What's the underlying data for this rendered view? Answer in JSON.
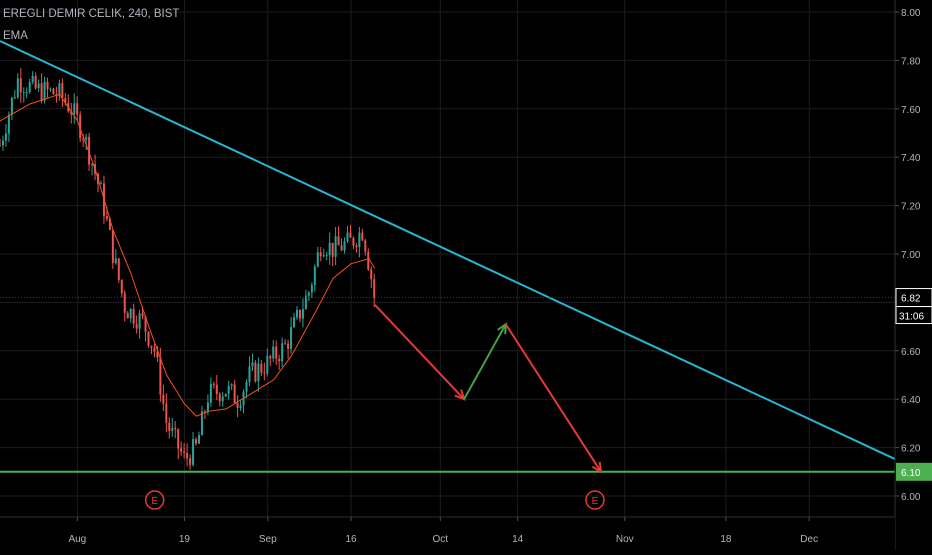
{
  "header": {
    "title": "EREGLI DEMIR CELIK, 240, BIST",
    "indicator": "EMA"
  },
  "price_scale": {
    "ticks": [
      "8.00",
      "7.80",
      "7.60",
      "7.40",
      "7.20",
      "7.00",
      "6.80",
      "6.60",
      "6.40",
      "6.20",
      "6.00"
    ],
    "last_price_label": "6.82",
    "countdown_label": "31:06",
    "support_label": "6.10"
  },
  "time_axis": {
    "labels": [
      "Aug",
      "19",
      "Sep",
      "16",
      "Oct",
      "14",
      "Nov",
      "18",
      "Dec"
    ]
  },
  "markers": [
    {
      "label": "E",
      "date": "Aug 14"
    },
    {
      "label": "E",
      "date": "Oct 27"
    }
  ],
  "colors": {
    "background": "#000000",
    "up_candle": "#26a69a",
    "down_candle": "#ef5350",
    "ema": "#f4511e",
    "trendline": "#29b6d2",
    "support": "#4caf50",
    "projection_down": "#e53935",
    "projection_up": "#43a047",
    "earnings_marker": "#e53935",
    "axis_text": "#b2b5be"
  },
  "chart_data": {
    "type": "candlestick",
    "symbol": "EREGLI DEMIR CELIK",
    "timeframe": "240",
    "exchange": "BIST",
    "ylim": [
      5.94,
      8.02
    ],
    "xlim": [
      "Jul 19",
      "Dec 21"
    ],
    "grid": true,
    "price_close_path": [
      {
        "date": "Jul 19",
        "close": 7.45
      },
      {
        "date": "Jul 22",
        "close": 7.72
      },
      {
        "date": "Jul 25",
        "close": 7.68
      },
      {
        "date": "Jul 29",
        "close": 7.66
      },
      {
        "date": "Jul 31",
        "close": 7.6
      },
      {
        "date": "Aug 2",
        "close": 7.5
      },
      {
        "date": "Aug 5",
        "close": 7.25
      },
      {
        "date": "Aug 7",
        "close": 7.0
      },
      {
        "date": "Aug 9",
        "close": 6.78
      },
      {
        "date": "Aug 12",
        "close": 6.72
      },
      {
        "date": "Aug 14",
        "close": 6.6
      },
      {
        "date": "Aug 16",
        "close": 6.3
      },
      {
        "date": "Aug 19",
        "close": 6.15
      },
      {
        "date": "Aug 21",
        "close": 6.2
      },
      {
        "date": "Aug 23",
        "close": 6.42
      },
      {
        "date": "Aug 26",
        "close": 6.44
      },
      {
        "date": "Aug 28",
        "close": 6.4
      },
      {
        "date": "Aug 30",
        "close": 6.5
      },
      {
        "date": "Sep 2",
        "close": 6.55
      },
      {
        "date": "Sep 5",
        "close": 6.62
      },
      {
        "date": "Sep 9",
        "close": 6.85
      },
      {
        "date": "Sep 11",
        "close": 7.05
      },
      {
        "date": "Sep 13",
        "close": 7.02
      },
      {
        "date": "Sep 16",
        "close": 7.05
      },
      {
        "date": "Sep 18",
        "close": 7.1
      },
      {
        "date": "Sep 19",
        "close": 6.96
      },
      {
        "date": "Sep 20",
        "close": 6.82
      }
    ],
    "ema": [
      {
        "date": "Jul 19",
        "value": 7.55
      },
      {
        "date": "Jul 24",
        "value": 7.62
      },
      {
        "date": "Jul 29",
        "value": 7.66
      },
      {
        "date": "Aug 1",
        "value": 7.55
      },
      {
        "date": "Aug 4",
        "value": 7.35
      },
      {
        "date": "Aug 7",
        "value": 7.1
      },
      {
        "date": "Aug 10",
        "value": 6.92
      },
      {
        "date": "Aug 13",
        "value": 6.7
      },
      {
        "date": "Aug 16",
        "value": 6.5
      },
      {
        "date": "Aug 19",
        "value": 6.38
      },
      {
        "date": "Aug 21",
        "value": 6.33
      },
      {
        "date": "Aug 23",
        "value": 6.35
      },
      {
        "date": "Aug 26",
        "value": 6.36
      },
      {
        "date": "Aug 30",
        "value": 6.42
      },
      {
        "date": "Sep 3",
        "value": 6.48
      },
      {
        "date": "Sep 6",
        "value": 6.58
      },
      {
        "date": "Sep 10",
        "value": 6.76
      },
      {
        "date": "Sep 13",
        "value": 6.9
      },
      {
        "date": "Sep 16",
        "value": 6.96
      },
      {
        "date": "Sep 19",
        "value": 6.98
      },
      {
        "date": "Sep 20",
        "value": 6.94
      }
    ],
    "last_price": 6.82,
    "annotations": {
      "trendline": [
        {
          "date": "Jul 19",
          "price": 7.88
        },
        {
          "date": "Dec 21",
          "price": 6.1
        }
      ],
      "support": {
        "price": 6.1
      },
      "projection": [
        {
          "date": "Sep 20",
          "price": 6.79
        },
        {
          "date": "Oct 5",
          "price": 6.4
        },
        {
          "date": "Oct 12",
          "price": 6.71
        },
        {
          "date": "Oct 28",
          "price": 6.1
        }
      ]
    }
  }
}
